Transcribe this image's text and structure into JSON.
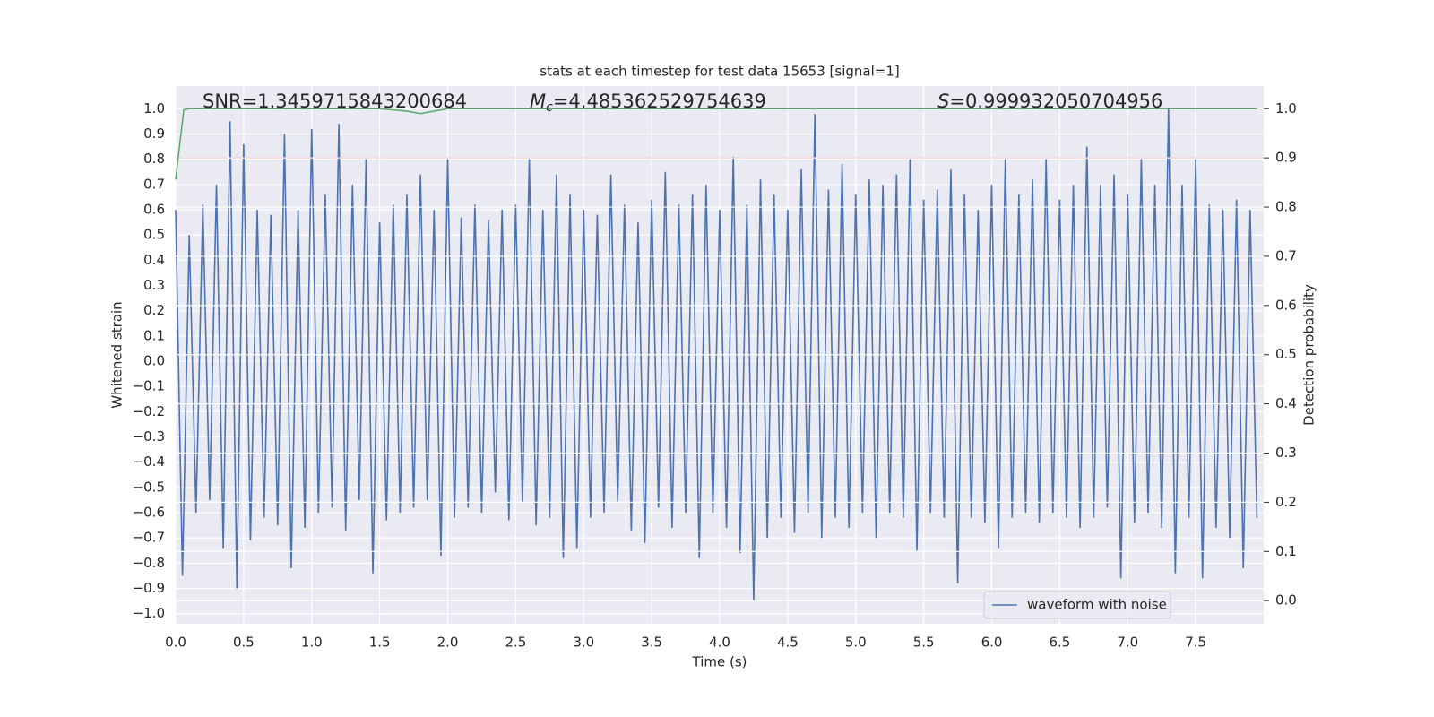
{
  "chart_data": {
    "type": "line",
    "title": "stats at each timestep for test data 15653 [signal=1]",
    "xlabel": "Time (s)",
    "ylabel": "Whitened strain",
    "y2label": "Detection probability",
    "annotations": [
      {
        "text": "SNR=1.3459715843200684"
      },
      {
        "symbol": "M",
        "subscript": "c",
        "text": "=4.485362529754639"
      },
      {
        "symbol": "S",
        "text": "=0.999932050704956"
      }
    ],
    "grid": true,
    "legend": "lower right",
    "xlim": [
      0,
      8.0
    ],
    "ylim": [
      -1.04,
      1.09
    ],
    "y2lim": [
      -0.047,
      1.046
    ],
    "xticks": [
      {
        "value": 0,
        "label": "0.0"
      },
      0.5,
      {
        "value": 1,
        "label": "1.0"
      },
      1.5,
      {
        "value": 2,
        "label": "2.0"
      },
      2.5,
      {
        "value": 3,
        "label": "3.0"
      },
      3.5,
      {
        "value": 4,
        "label": "4.0"
      },
      4.5,
      {
        "value": 5,
        "label": "5.0"
      },
      5.5,
      {
        "value": 6,
        "label": "6.0"
      },
      6.5,
      {
        "value": 7,
        "label": "7.0"
      },
      7.5
    ],
    "yticks": [
      {
        "value": -1,
        "label": "−1.0"
      },
      {
        "value": -0.9,
        "label": "−0.9"
      },
      {
        "value": -0.8,
        "label": "−0.8"
      },
      {
        "value": -0.7,
        "label": "−0.7"
      },
      {
        "value": -0.6,
        "label": "−0.6"
      },
      {
        "value": -0.5,
        "label": "−0.5"
      },
      {
        "value": -0.4,
        "label": "−0.4"
      },
      {
        "value": -0.3,
        "label": "−0.3"
      },
      {
        "value": -0.2,
        "label": "−0.2"
      },
      {
        "value": -0.1,
        "label": "−0.1"
      },
      {
        "value": 0,
        "label": "0.0"
      },
      0.1,
      0.2,
      0.3,
      0.4,
      0.5,
      0.6,
      0.7,
      0.8,
      0.9,
      {
        "value": 1,
        "label": "1.0"
      }
    ],
    "y2ticks": [
      {
        "value": 0,
        "label": "0.0"
      },
      0.1,
      0.2,
      0.3,
      0.4,
      0.5,
      0.6,
      0.7,
      0.8,
      0.9,
      {
        "value": 1,
        "label": "1.0"
      }
    ],
    "series": [
      {
        "name": "waveform with noise",
        "color": "#4c72b0",
        "x": [
          0,
          0.05,
          0.1,
          0.15,
          0.2,
          0.25,
          0.3,
          0.35,
          0.4,
          0.45,
          0.5,
          0.55,
          0.6,
          0.65,
          0.7,
          0.75,
          0.8,
          0.85,
          0.9,
          0.95,
          1,
          1.05,
          1.1,
          1.15,
          1.2,
          1.25,
          1.3,
          1.35,
          1.4,
          1.45,
          1.5,
          1.55,
          1.6,
          1.65,
          1.7,
          1.75,
          1.8,
          1.85,
          1.9,
          1.95,
          2,
          2.05,
          2.1,
          2.15,
          2.2,
          2.25,
          2.3,
          2.35,
          2.4,
          2.45,
          2.5,
          2.55,
          2.6,
          2.65,
          2.7,
          2.75,
          2.8,
          2.85,
          2.9,
          2.95,
          3,
          3.05,
          3.1,
          3.15,
          3.2,
          3.25,
          3.3,
          3.35,
          3.4,
          3.45,
          3.5,
          3.55,
          3.6,
          3.65,
          3.7,
          3.75,
          3.8,
          3.85,
          3.9,
          3.95,
          4,
          4.05,
          4.1,
          4.15,
          4.2,
          4.25,
          4.3,
          4.35,
          4.4,
          4.45,
          4.5,
          4.55,
          4.6,
          4.65,
          4.7,
          4.75,
          4.8,
          4.85,
          4.9,
          4.95,
          5,
          5.05,
          5.1,
          5.15,
          5.2,
          5.25,
          5.3,
          5.35,
          5.4,
          5.45,
          5.5,
          5.55,
          5.6,
          5.65,
          5.7,
          5.75,
          5.8,
          5.85,
          5.9,
          5.95,
          6,
          6.05,
          6.1,
          6.15,
          6.2,
          6.25,
          6.3,
          6.35,
          6.4,
          6.45,
          6.5,
          6.55,
          6.6,
          6.65,
          6.7,
          6.75,
          6.8,
          6.85,
          6.9,
          6.95,
          7,
          7.05,
          7.1,
          7.15,
          7.2,
          7.25,
          7.3,
          7.35,
          7.4,
          7.45,
          7.5,
          7.55,
          7.6,
          7.65,
          7.7,
          7.75,
          7.8,
          7.85,
          7.9,
          7.95
        ],
        "values": [
          0.6,
          -0.85,
          0.5,
          -0.6,
          0.62,
          -0.55,
          0.7,
          -0.74,
          0.95,
          -0.9,
          0.86,
          -0.71,
          0.6,
          -0.62,
          0.58,
          -0.65,
          0.9,
          -0.82,
          0.6,
          -0.66,
          0.92,
          -0.6,
          0.66,
          -0.58,
          0.94,
          -0.67,
          0.7,
          -0.55,
          0.8,
          -0.84,
          0.55,
          -0.63,
          0.62,
          -0.6,
          0.66,
          -0.58,
          0.74,
          -0.55,
          0.6,
          -0.77,
          0.8,
          -0.62,
          0.57,
          -0.58,
          0.62,
          -0.6,
          0.56,
          -0.52,
          0.6,
          -0.63,
          0.62,
          -0.56,
          0.8,
          -0.65,
          0.6,
          -0.62,
          0.74,
          -0.78,
          0.66,
          -0.74,
          0.6,
          -0.62,
          0.58,
          -0.6,
          0.74,
          -0.56,
          0.62,
          -0.67,
          0.55,
          -0.72,
          0.64,
          -0.58,
          0.75,
          -0.66,
          0.62,
          -0.6,
          0.66,
          -0.78,
          0.7,
          -0.6,
          0.6,
          -0.66,
          0.81,
          -0.76,
          0.62,
          -0.95,
          0.72,
          -0.7,
          0.66,
          -0.62,
          0.6,
          -0.68,
          0.76,
          -0.6,
          0.98,
          -0.7,
          0.68,
          -0.62,
          0.78,
          -0.66,
          0.66,
          -0.6,
          0.72,
          -0.7,
          0.7,
          -0.6,
          0.74,
          -0.62,
          0.8,
          -0.75,
          0.64,
          -0.6,
          0.68,
          -0.62,
          0.76,
          -0.88,
          0.66,
          -0.62,
          0.6,
          -0.64,
          0.7,
          -0.74,
          0.8,
          -0.62,
          0.66,
          -0.6,
          0.72,
          -0.64,
          0.8,
          -0.6,
          0.64,
          -0.62,
          0.7,
          -0.66,
          0.85,
          -0.62,
          0.7,
          -0.58,
          0.74,
          -0.86,
          0.66,
          -0.64,
          0.8,
          -0.6,
          0.7,
          -0.66,
          1.0,
          -0.84,
          0.7,
          -0.62,
          0.8,
          -0.86,
          0.62,
          -0.66,
          0.6,
          -0.7,
          0.64,
          -0.82,
          0.6,
          -0.62
        ]
      },
      {
        "color": "#55a868",
        "axis": "y2",
        "x": [
          0,
          0.06,
          0.1,
          0.2,
          1.5,
          1.7,
          1.8,
          1.9,
          2.0,
          7.95
        ],
        "values": [
          0.856,
          0.998,
          1.0,
          1.0,
          1.0,
          0.995,
          0.99,
          0.995,
          1.0,
          1.0
        ]
      },
      {
        "color": "#c44e52",
        "axis": "y2",
        "x": [
          0,
          8.0
        ],
        "values": [
          0.9,
          0.9
        ]
      }
    ]
  }
}
